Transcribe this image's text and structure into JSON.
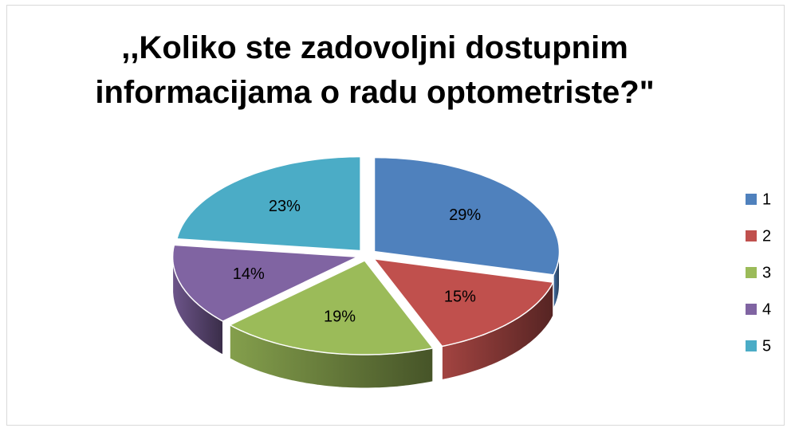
{
  "chart_data": {
    "type": "pie",
    "title": ",,Koliko ste zadovoljni dostupnim informacijama o radu optometriste?\"",
    "categories": [
      "1",
      "2",
      "3",
      "4",
      "5"
    ],
    "values": [
      29,
      15,
      19,
      14,
      23
    ],
    "value_labels": [
      "29%",
      "15%",
      "19%",
      "14%",
      "23%"
    ],
    "colors": [
      "#4f81bd",
      "#c0504d",
      "#9bbb59",
      "#8064a2",
      "#4bacc6"
    ],
    "legend": "right"
  }
}
